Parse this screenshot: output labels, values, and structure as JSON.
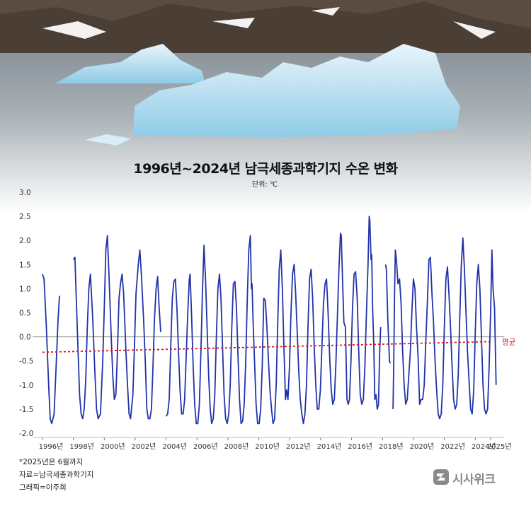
{
  "title": "1996년~2024년 남극세종과학기지 수온 변화",
  "unit_label": "단위: ℃",
  "footnotes": {
    "note": "*2025년은 6월까지",
    "source": "자료=남극세종과학기지",
    "graphic": "그래픽=이주희"
  },
  "logo_text": "시사위크",
  "colors": {
    "series": "#2233aa",
    "average": "#e01515",
    "zero_line": "#888888",
    "grid": "#dddddd"
  },
  "chart_data": {
    "type": "line",
    "title": "1996년~2024년 남극세종과학기지 수온 변화",
    "unit": "℃",
    "ylim": [
      -2.0,
      3.0
    ],
    "y_ticks": [
      "3.0",
      "2.5",
      "2.0",
      "1.5",
      "1.0",
      "0.5",
      "0.0",
      "-0.5",
      "-1.0",
      "-1.5",
      "-2.0"
    ],
    "x_ticks": [
      "1996년",
      "1998년",
      "2000년",
      "2002년",
      "2004년",
      "2006년",
      "2008년",
      "2010년",
      "2012년",
      "2014년",
      "2016년",
      "2018년",
      "2020년",
      "2022년",
      "2024년",
      "2025년"
    ],
    "x_range": [
      1996,
      2025.5
    ],
    "series": [
      {
        "values": [
          [
            1996.0,
            1.3
          ],
          [
            1996.1,
            1.2
          ],
          [
            1996.25,
            0.2
          ],
          [
            1996.4,
            -1.0
          ],
          [
            1996.5,
            -1.7
          ],
          [
            1996.6,
            -1.8
          ],
          [
            1996.75,
            -1.6
          ],
          [
            1996.9,
            -0.5
          ],
          [
            1997.0,
            0.3
          ],
          [
            1997.1,
            0.85
          ],
          null,
          [
            1998.0,
            1.6
          ],
          [
            1998.1,
            1.65
          ],
          [
            1998.25,
            0.2
          ],
          [
            1998.4,
            -1.2
          ],
          [
            1998.5,
            -1.6
          ],
          [
            1998.6,
            -1.7
          ],
          [
            1998.7,
            -1.5
          ],
          [
            1998.8,
            -0.9
          ],
          [
            1998.9,
            0.2
          ],
          [
            1999.0,
            1.0
          ],
          [
            1999.1,
            1.3
          ],
          [
            1999.25,
            0.4
          ],
          [
            1999.4,
            -0.8
          ],
          [
            1999.5,
            -1.5
          ],
          [
            1999.6,
            -1.7
          ],
          [
            1999.75,
            -1.6
          ],
          [
            1999.9,
            -0.5
          ],
          [
            2000.0,
            0.6
          ],
          [
            2000.1,
            1.8
          ],
          [
            2000.2,
            2.1
          ],
          [
            2000.3,
            1.3
          ],
          [
            2000.45,
            0.0
          ],
          [
            2000.55,
            -0.8
          ],
          [
            2000.65,
            -1.3
          ],
          [
            2000.75,
            -1.2
          ],
          [
            2000.85,
            -0.3
          ],
          [
            2000.95,
            0.8
          ],
          [
            2001.05,
            1.1
          ],
          [
            2001.15,
            1.3
          ],
          [
            2001.25,
            0.9
          ],
          [
            2001.4,
            -0.3
          ],
          [
            2001.5,
            -1.0
          ],
          [
            2001.6,
            -1.6
          ],
          [
            2001.7,
            -1.7
          ],
          [
            2001.85,
            -1.2
          ],
          [
            2001.95,
            -0.2
          ],
          [
            2002.05,
            0.9
          ],
          [
            2002.2,
            1.5
          ],
          [
            2002.3,
            1.8
          ],
          [
            2002.4,
            1.3
          ],
          [
            2002.55,
            0.3
          ],
          [
            2002.65,
            -0.5
          ],
          [
            2002.75,
            -1.5
          ],
          [
            2002.85,
            -1.7
          ],
          [
            2002.95,
            -1.7
          ],
          [
            2003.05,
            -1.5
          ],
          [
            2003.15,
            -0.6
          ],
          [
            2003.25,
            0.4
          ],
          [
            2003.35,
            1.0
          ],
          [
            2003.45,
            1.25
          ],
          [
            2003.55,
            0.6
          ],
          [
            2003.65,
            0.1
          ],
          null,
          [
            2004.0,
            -1.65
          ],
          [
            2004.1,
            -1.6
          ],
          [
            2004.2,
            -1.3
          ],
          [
            2004.3,
            -0.2
          ],
          [
            2004.4,
            0.8
          ],
          [
            2004.5,
            1.15
          ],
          [
            2004.6,
            1.2
          ],
          [
            2004.7,
            0.6
          ],
          [
            2004.8,
            -0.3
          ],
          [
            2004.9,
            -1.1
          ],
          [
            2005.0,
            -1.6
          ],
          [
            2005.1,
            -1.6
          ],
          [
            2005.2,
            -1.3
          ],
          [
            2005.3,
            -0.4
          ],
          [
            2005.4,
            0.5
          ],
          [
            2005.5,
            1.2
          ],
          [
            2005.55,
            1.3
          ],
          [
            2005.65,
            0.4
          ],
          [
            2005.75,
            -0.6
          ],
          [
            2005.85,
            -1.4
          ],
          [
            2005.95,
            -1.8
          ],
          [
            2006.05,
            -1.8
          ],
          [
            2006.15,
            -1.4
          ],
          [
            2006.25,
            -0.3
          ],
          [
            2006.35,
            0.9
          ],
          [
            2006.45,
            1.9
          ],
          [
            2006.55,
            1.2
          ],
          [
            2006.65,
            0.2
          ],
          [
            2006.75,
            -0.8
          ],
          [
            2006.85,
            -1.5
          ],
          [
            2006.95,
            -1.8
          ],
          [
            2007.05,
            -1.7
          ],
          [
            2007.15,
            -1.2
          ],
          [
            2007.25,
            0.0
          ],
          [
            2007.35,
            1.0
          ],
          [
            2007.45,
            1.3
          ],
          [
            2007.55,
            0.8
          ],
          [
            2007.65,
            -0.2
          ],
          [
            2007.75,
            -1.2
          ],
          [
            2007.85,
            -1.7
          ],
          [
            2007.95,
            -1.8
          ],
          [
            2008.05,
            -1.6
          ],
          [
            2008.15,
            -1.0
          ],
          [
            2008.25,
            0.2
          ],
          [
            2008.35,
            1.1
          ],
          [
            2008.45,
            1.15
          ],
          [
            2008.55,
            0.6
          ],
          [
            2008.65,
            -0.4
          ],
          [
            2008.75,
            -1.3
          ],
          [
            2008.85,
            -1.8
          ],
          [
            2008.95,
            -1.75
          ],
          [
            2009.05,
            -1.4
          ],
          [
            2009.15,
            -0.5
          ],
          [
            2009.25,
            0.8
          ],
          [
            2009.35,
            1.8
          ],
          [
            2009.45,
            2.1
          ],
          [
            2009.52,
            1.0
          ],
          [
            2009.56,
            1.1
          ],
          [
            2009.62,
            0.4
          ],
          [
            2009.72,
            -0.5
          ],
          [
            2009.82,
            -1.4
          ],
          [
            2009.92,
            -1.8
          ],
          [
            2010.02,
            -1.8
          ],
          [
            2010.12,
            -1.5
          ],
          [
            2010.22,
            -0.6
          ],
          [
            2010.32,
            0.8
          ],
          [
            2010.42,
            0.75
          ],
          [
            2010.52,
            0.2
          ],
          [
            2010.62,
            -0.5
          ],
          [
            2010.72,
            -1.1
          ],
          [
            2010.82,
            -1.5
          ],
          [
            2010.92,
            -1.8
          ],
          [
            2011.02,
            -1.7
          ],
          [
            2011.12,
            -1.0
          ],
          [
            2011.22,
            0.3
          ],
          [
            2011.32,
            1.4
          ],
          [
            2011.42,
            1.8
          ],
          [
            2011.52,
            1.0
          ],
          [
            2011.62,
            -0.2
          ],
          [
            2011.72,
            -1.3
          ],
          [
            2011.8,
            -1.1
          ],
          [
            2011.88,
            -1.3
          ],
          [
            2011.98,
            -0.6
          ],
          [
            2012.08,
            0.5
          ],
          [
            2012.18,
            1.3
          ],
          [
            2012.28,
            1.5
          ],
          [
            2012.38,
            0.9
          ],
          [
            2012.48,
            0.1
          ],
          [
            2012.58,
            -0.7
          ],
          [
            2012.68,
            -1.3
          ],
          [
            2012.78,
            -1.6
          ],
          [
            2012.88,
            -1.8
          ],
          [
            2012.98,
            -1.6
          ],
          [
            2013.08,
            -1.0
          ],
          [
            2013.18,
            0.2
          ],
          [
            2013.28,
            1.2
          ],
          [
            2013.38,
            1.4
          ],
          [
            2013.48,
            0.8
          ],
          [
            2013.58,
            -0.2
          ],
          [
            2013.68,
            -1.0
          ],
          [
            2013.78,
            -1.5
          ],
          [
            2013.88,
            -1.5
          ],
          [
            2013.98,
            -1.1
          ],
          [
            2014.08,
            -0.2
          ],
          [
            2014.18,
            0.7
          ],
          [
            2014.28,
            1.1
          ],
          [
            2014.38,
            1.2
          ],
          [
            2014.48,
            0.5
          ],
          [
            2014.58,
            -0.4
          ],
          [
            2014.68,
            -1.1
          ],
          [
            2014.78,
            -1.4
          ],
          [
            2014.88,
            -1.3
          ],
          [
            2014.98,
            -0.6
          ],
          [
            2015.08,
            0.4
          ],
          [
            2015.18,
            1.4
          ],
          [
            2015.28,
            2.15
          ],
          [
            2015.33,
            2.1
          ],
          [
            2015.43,
            1.0
          ],
          [
            2015.5,
            0.3
          ],
          [
            2015.6,
            0.2
          ],
          [
            2015.7,
            -1.3
          ],
          [
            2015.78,
            -1.4
          ],
          [
            2015.86,
            -1.3
          ],
          [
            2015.96,
            -0.5
          ],
          [
            2016.06,
            0.6
          ],
          [
            2016.16,
            1.3
          ],
          [
            2016.26,
            1.35
          ],
          [
            2016.36,
            0.8
          ],
          [
            2016.46,
            -0.3
          ],
          [
            2016.56,
            -1.2
          ],
          [
            2016.66,
            -1.4
          ],
          [
            2016.76,
            -1.3
          ],
          [
            2016.86,
            -0.6
          ],
          [
            2016.96,
            0.5
          ],
          [
            2017.06,
            1.5
          ],
          [
            2017.14,
            2.5
          ],
          [
            2017.18,
            2.4
          ],
          [
            2017.26,
            1.6
          ],
          [
            2017.3,
            1.7
          ],
          [
            2017.36,
            0.6
          ],
          [
            2017.44,
            -0.2
          ],
          [
            2017.5,
            -1.3
          ],
          [
            2017.58,
            -1.2
          ],
          [
            2017.66,
            -1.5
          ],
          [
            2017.74,
            -1.4
          ],
          [
            2017.82,
            -0.3
          ],
          [
            2017.88,
            0.2
          ],
          null,
          [
            2018.2,
            1.5
          ],
          [
            2018.25,
            1.4
          ],
          [
            2018.35,
            0.3
          ],
          [
            2018.45,
            -0.5
          ],
          [
            2018.5,
            -0.55
          ],
          null,
          [
            2018.68,
            -1.5
          ],
          [
            2018.73,
            -0.5
          ],
          [
            2018.78,
            0.9
          ],
          [
            2018.83,
            1.8
          ],
          [
            2018.9,
            1.6
          ],
          [
            2019.0,
            1.1
          ],
          [
            2019.1,
            1.2
          ],
          [
            2019.2,
            0.7
          ],
          [
            2019.3,
            -0.3
          ],
          [
            2019.4,
            -1.0
          ],
          [
            2019.5,
            -1.4
          ],
          [
            2019.6,
            -1.3
          ],
          [
            2019.7,
            -0.8
          ],
          [
            2019.8,
            -0.3
          ],
          [
            2019.9,
            0.5
          ],
          [
            2020.0,
            1.2
          ],
          [
            2020.1,
            1.0
          ],
          [
            2020.2,
            0.2
          ],
          [
            2020.3,
            -0.4
          ],
          [
            2020.4,
            -1.4
          ],
          [
            2020.5,
            -1.3
          ],
          [
            2020.6,
            -1.3
          ],
          [
            2020.7,
            -1.0
          ],
          [
            2020.8,
            -0.1
          ],
          [
            2020.9,
            0.7
          ],
          [
            2021.0,
            1.6
          ],
          [
            2021.1,
            1.65
          ],
          [
            2021.2,
            0.9
          ],
          [
            2021.3,
            0.3
          ],
          [
            2021.4,
            -0.5
          ],
          [
            2021.5,
            -1.1
          ],
          [
            2021.6,
            -1.6
          ],
          [
            2021.7,
            -1.7
          ],
          [
            2021.8,
            -1.6
          ],
          [
            2021.9,
            -1.0
          ],
          [
            2022.0,
            0.2
          ],
          [
            2022.1,
            1.2
          ],
          [
            2022.2,
            1.45
          ],
          [
            2022.3,
            0.9
          ],
          [
            2022.4,
            0.2
          ],
          [
            2022.5,
            -0.6
          ],
          [
            2022.6,
            -1.3
          ],
          [
            2022.7,
            -1.5
          ],
          [
            2022.8,
            -1.4
          ],
          [
            2022.9,
            -0.8
          ],
          [
            2023.0,
            0.4
          ],
          [
            2023.1,
            1.5
          ],
          [
            2023.2,
            2.05
          ],
          [
            2023.3,
            1.4
          ],
          [
            2023.4,
            0.5
          ],
          [
            2023.5,
            -0.3
          ],
          [
            2023.6,
            -0.9
          ],
          [
            2023.7,
            -1.5
          ],
          [
            2023.8,
            -1.6
          ],
          [
            2023.9,
            -1.1
          ],
          [
            2024.0,
            0.1
          ],
          [
            2024.1,
            1.1
          ],
          [
            2024.2,
            1.5
          ],
          [
            2024.3,
            1.0
          ],
          [
            2024.4,
            0.0
          ],
          [
            2024.5,
            -1.0
          ],
          [
            2024.6,
            -1.5
          ],
          [
            2024.7,
            -1.6
          ],
          [
            2024.8,
            -1.5
          ],
          [
            2024.9,
            -0.6
          ],
          [
            2025.0,
            0.6
          ],
          [
            2025.08,
            1.8
          ],
          [
            2025.15,
            1.0
          ],
          [
            2025.25,
            0.6
          ],
          [
            2025.35,
            -1.0
          ]
        ]
      },
      {
        "name": "평균",
        "style": "dashed",
        "values": [
          [
            1996.0,
            -0.32
          ],
          [
            2025.0,
            -0.1
          ]
        ]
      }
    ]
  }
}
